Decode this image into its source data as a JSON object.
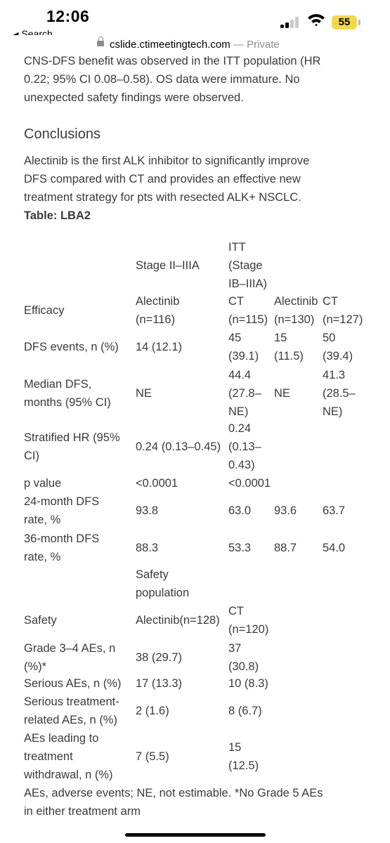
{
  "status_bar": {
    "time": "12:06",
    "back_app": "Search",
    "battery": "55"
  },
  "url_bar": {
    "domain": "cslide.ctimeetingtech.com",
    "private_label": "— Private"
  },
  "results": {
    "line1": "CNS-DFS benefit was observed in the ITT population (HR",
    "line2": "0.22; 95% CI 0.08–0.58). OS data were immature. No",
    "line3": "unexpected safety findings were observed."
  },
  "conclusions": {
    "heading": "Conclusions",
    "line1": "Alectinib is the first ALK inhibitor to significantly improve",
    "line2": "DFS compared with CT and provides an effective new",
    "line3": "treatment strategy for pts with resected ALK+ NSCLC.",
    "table_label": "Table: LBA2"
  },
  "table": {
    "stage": "Stage II–IIIA",
    "itt": [
      "ITT",
      "(Stage",
      "IB–IIIA)"
    ],
    "efficacy": "Efficacy",
    "col_alectinib_1": [
      "Alectinib",
      "(n=116)"
    ],
    "col_ct_1": [
      "CT",
      "(n=115)"
    ],
    "col_alectinib_2": [
      "Alectinib",
      "(n=130)"
    ],
    "col_ct_2": [
      "CT",
      "(n=127)"
    ],
    "dfs_events": {
      "label": "DFS events, n (%)",
      "a1": "14 (12.1)",
      "c1": [
        "45",
        "(39.1)"
      ],
      "a2": [
        "15",
        "(11.5)"
      ],
      "c2": [
        "50",
        "(39.4)"
      ]
    },
    "median_dfs": {
      "label": [
        "Median DFS,",
        "months (95% CI)"
      ],
      "a1": "NE",
      "c1": [
        "44.4",
        "(27.8–",
        "NE)"
      ],
      "a2": "NE",
      "c2": [
        "41.3",
        "(28.5–",
        "NE)"
      ]
    },
    "stratified_hr": {
      "label": [
        "Stratified HR (95%",
        "CI)"
      ],
      "a1": "0.24 (0.13–0.45)",
      "c1": [
        "0.24",
        "(0.13–",
        "0.43)"
      ]
    },
    "p_value": {
      "label": "p value",
      "a1": "<0.0001",
      "c1": "<0.0001"
    },
    "dfs24": {
      "label": [
        "24-month DFS",
        "rate, %"
      ],
      "a1": "93.8",
      "c1": "63.0",
      "a2": "93.6",
      "c2": "63.7"
    },
    "dfs36": {
      "label": [
        "36-month DFS",
        "rate, %"
      ],
      "a1": "88.3",
      "c1": "53.3",
      "a2": "88.7",
      "c2": "54.0"
    },
    "safety_population": [
      "Safety",
      "population"
    ],
    "safety": {
      "label": "Safety",
      "a1": "Alectinib(n=128)",
      "c1": [
        "CT",
        "(n=120)"
      ]
    },
    "grade34": {
      "label": [
        "Grade 3–4 AEs, n",
        "(%)*"
      ],
      "a1": "38 (29.7)",
      "c1": [
        "37",
        "(30.8)"
      ]
    },
    "serious": {
      "label": "Serious AEs, n (%)",
      "a1": "17 (13.3)",
      "c1": "10 (8.3)"
    },
    "serious_tr": {
      "label": [
        "Serious treatment-",
        "related AEs, n (%)"
      ],
      "a1": "2 (1.6)",
      "c1": "8 (6.7)"
    },
    "withdrawal": {
      "label": [
        "AEs leading to",
        "treatment",
        "withdrawal, n (%)"
      ],
      "a1": "7 (5.5)",
      "c1": [
        "15",
        "(12.5)"
      ]
    }
  },
  "footnote": {
    "line1": "AEs, adverse events; NE, not estimable. *No Grade 5 AEs",
    "line2": "in either treatment arm"
  }
}
